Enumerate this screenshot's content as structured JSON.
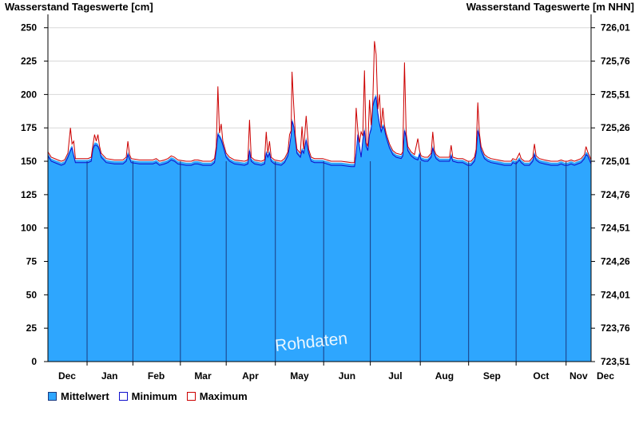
{
  "chart_data": {
    "type": "area",
    "title_left": "Wasserstand Tageswerte [cm]",
    "title_right": "Wasserstand Tageswerte [m NHN]",
    "watermark": "Rohdaten",
    "y_left": {
      "ticks": [
        0,
        25,
        50,
        75,
        100,
        125,
        150,
        175,
        200,
        225,
        250
      ],
      "ylim": [
        0,
        260
      ]
    },
    "y_right": {
      "ticks": [
        "723,51",
        "723,76",
        "724,01",
        "724,26",
        "724,51",
        "724,76",
        "725,01",
        "725,26",
        "725,51",
        "725,76",
        "726,01"
      ]
    },
    "months": [
      "Dec",
      "Jan",
      "Feb",
      "Mar",
      "Apr",
      "May",
      "Jun",
      "Jul",
      "Aug",
      "Sep",
      "Oct",
      "Nov",
      "Dec"
    ],
    "grid": true,
    "legend_position": "bottom-left",
    "colors": {
      "mean": "#2ea6fe",
      "minimum": "#1010cc",
      "maximum": "#cc0000",
      "grid": "#d8d8d8",
      "month_line": "#1a3a80"
    },
    "series": [
      {
        "name": "Mittelwert",
        "key": "mean",
        "points": [
          [
            0,
            156
          ],
          [
            4,
            152
          ],
          [
            12,
            150
          ],
          [
            16,
            149
          ],
          [
            20,
            150
          ],
          [
            24,
            155
          ],
          [
            27,
            160
          ],
          [
            29,
            162
          ],
          [
            31,
            156
          ],
          [
            33,
            151
          ],
          [
            40,
            151
          ],
          [
            48,
            151
          ],
          [
            52,
            152
          ],
          [
            54,
            161
          ],
          [
            56,
            164
          ],
          [
            58,
            164
          ],
          [
            60,
            163
          ],
          [
            62,
            160
          ],
          [
            64,
            155
          ],
          [
            70,
            151
          ],
          [
            80,
            150
          ],
          [
            90,
            150
          ],
          [
            94,
            152
          ],
          [
            96,
            157
          ],
          [
            98,
            154
          ],
          [
            100,
            151
          ],
          [
            110,
            150
          ],
          [
            120,
            150
          ],
          [
            126,
            150
          ],
          [
            130,
            151
          ],
          [
            134,
            149
          ],
          [
            140,
            150
          ],
          [
            144,
            151
          ],
          [
            148,
            153
          ],
          [
            152,
            152
          ],
          [
            156,
            150
          ],
          [
            166,
            149
          ],
          [
            172,
            149
          ],
          [
            176,
            150
          ],
          [
            180,
            150
          ],
          [
            186,
            149
          ],
          [
            196,
            149
          ],
          [
            200,
            151
          ],
          [
            202,
            160
          ],
          [
            204,
            172
          ],
          [
            206,
            170
          ],
          [
            208,
            168
          ],
          [
            210,
            164
          ],
          [
            214,
            155
          ],
          [
            218,
            152
          ],
          [
            224,
            150
          ],
          [
            236,
            149
          ],
          [
            240,
            150
          ],
          [
            242,
            160
          ],
          [
            244,
            152
          ],
          [
            248,
            150
          ],
          [
            256,
            149
          ],
          [
            260,
            150
          ],
          [
            262,
            158
          ],
          [
            264,
            155
          ],
          [
            266,
            158
          ],
          [
            268,
            152
          ],
          [
            272,
            150
          ],
          [
            280,
            149
          ],
          [
            284,
            151
          ],
          [
            288,
            156
          ],
          [
            290,
            163
          ],
          [
            292,
            172
          ],
          [
            293,
            182
          ],
          [
            295,
            178
          ],
          [
            297,
            168
          ],
          [
            299,
            158
          ],
          [
            303,
            155
          ],
          [
            305,
            160
          ],
          [
            307,
            158
          ],
          [
            310,
            168
          ],
          [
            313,
            158
          ],
          [
            316,
            152
          ],
          [
            320,
            151
          ],
          [
            330,
            151
          ],
          [
            340,
            149
          ],
          [
            352,
            149
          ],
          [
            364,
            148
          ],
          [
            368,
            148
          ],
          [
            370,
            158
          ],
          [
            372,
            172
          ],
          [
            374,
            163
          ],
          [
            376,
            155
          ],
          [
            378,
            168
          ],
          [
            380,
            175
          ],
          [
            382,
            163
          ],
          [
            384,
            160
          ],
          [
            386,
            172
          ],
          [
            388,
            176
          ],
          [
            390,
            193
          ],
          [
            392,
            198
          ],
          [
            394,
            200
          ],
          [
            396,
            188
          ],
          [
            398,
            180
          ],
          [
            400,
            174
          ],
          [
            402,
            178
          ],
          [
            404,
            176
          ],
          [
            406,
            170
          ],
          [
            410,
            162
          ],
          [
            414,
            157
          ],
          [
            418,
            155
          ],
          [
            424,
            154
          ],
          [
            426,
            156
          ],
          [
            428,
            175
          ],
          [
            430,
            170
          ],
          [
            432,
            160
          ],
          [
            436,
            156
          ],
          [
            440,
            154
          ],
          [
            444,
            153
          ],
          [
            446,
            157
          ],
          [
            448,
            153
          ],
          [
            452,
            152
          ],
          [
            456,
            152
          ],
          [
            460,
            155
          ],
          [
            462,
            162
          ],
          [
            464,
            157
          ],
          [
            466,
            154
          ],
          [
            470,
            152
          ],
          [
            476,
            152
          ],
          [
            482,
            152
          ],
          [
            484,
            156
          ],
          [
            486,
            152
          ],
          [
            492,
            151
          ],
          [
            498,
            151
          ],
          [
            504,
            149
          ],
          [
            508,
            149
          ],
          [
            512,
            152
          ],
          [
            514,
            158
          ],
          [
            516,
            175
          ],
          [
            518,
            170
          ],
          [
            520,
            160
          ],
          [
            524,
            154
          ],
          [
            528,
            152
          ],
          [
            532,
            151
          ],
          [
            540,
            150
          ],
          [
            548,
            149
          ],
          [
            556,
            149
          ],
          [
            558,
            151
          ],
          [
            562,
            150
          ],
          [
            566,
            153
          ],
          [
            568,
            151
          ],
          [
            572,
            149
          ],
          [
            578,
            149
          ],
          [
            582,
            152
          ],
          [
            584,
            157
          ],
          [
            586,
            153
          ],
          [
            590,
            151
          ],
          [
            596,
            150
          ],
          [
            604,
            149
          ],
          [
            612,
            149
          ],
          [
            616,
            150
          ],
          [
            620,
            149
          ],
          [
            624,
            149
          ],
          [
            628,
            150
          ],
          [
            632,
            149
          ],
          [
            636,
            150
          ],
          [
            640,
            151
          ],
          [
            644,
            154
          ],
          [
            646,
            157
          ],
          [
            648,
            156
          ],
          [
            650,
            153
          ],
          [
            652,
            150
          ]
        ],
        "min_offset": -2
      },
      {
        "name": "Minimum",
        "key": "minimum"
      },
      {
        "name": "Maximum",
        "key": "maximum",
        "peaks": [
          [
            27,
            175
          ],
          [
            31,
            165
          ],
          [
            56,
            170
          ],
          [
            60,
            170
          ],
          [
            96,
            165
          ],
          [
            204,
            206
          ],
          [
            208,
            178
          ],
          [
            242,
            181
          ],
          [
            262,
            172
          ],
          [
            266,
            165
          ],
          [
            290,
            170
          ],
          [
            293,
            217
          ],
          [
            295,
            192
          ],
          [
            305,
            176
          ],
          [
            310,
            184
          ],
          [
            370,
            190
          ],
          [
            376,
            172
          ],
          [
            380,
            218
          ],
          [
            386,
            196
          ],
          [
            392,
            240
          ],
          [
            394,
            230
          ],
          [
            398,
            200
          ],
          [
            402,
            190
          ],
          [
            428,
            224
          ],
          [
            444,
            167
          ],
          [
            462,
            172
          ],
          [
            484,
            162
          ],
          [
            516,
            194
          ],
          [
            566,
            156
          ],
          [
            584,
            163
          ],
          [
            608,
            157
          ],
          [
            646,
            161
          ]
        ]
      }
    ]
  },
  "legend": [
    {
      "label": "Mittelwert",
      "key": "mean"
    },
    {
      "label": "Minimum",
      "key": "minimum"
    },
    {
      "label": "Maximum",
      "key": "maximum"
    }
  ]
}
